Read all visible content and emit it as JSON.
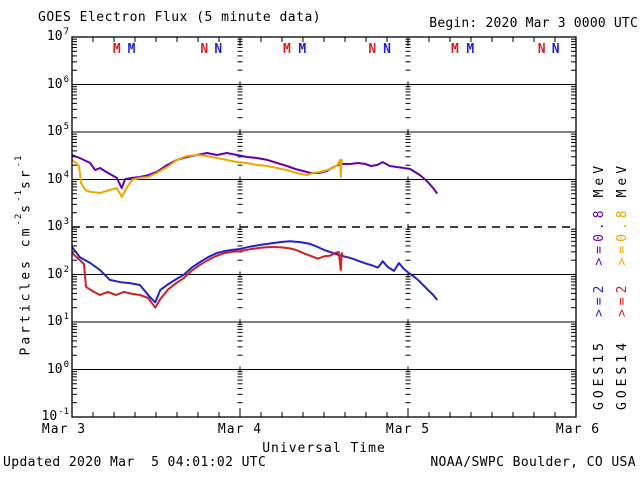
{
  "header": {
    "title": "GOES Electron Flux (5 minute data)",
    "begin": "Begin: 2020 Mar 3 0000 UTC"
  },
  "footer": {
    "updated": "Updated 2020 Mar  5 04:01:02 UTC",
    "source": "NOAA/SWPC Boulder, CO USA"
  },
  "colors": {
    "background": "#ffffff",
    "frame": "#000000",
    "goes15_08mev": "#6600AA",
    "goes14_08mev": "#EFA800",
    "goes15_2mev": "#2222CC",
    "goes14_2mev": "#CC2222"
  },
  "y_axis_title_segments": [
    {
      "text": "Particles cm",
      "sup": false
    },
    {
      "text": "-2",
      "sup": true
    },
    {
      "text": "s",
      "sup": false
    },
    {
      "text": "-1",
      "sup": true
    },
    {
      "text": "sr",
      "sup": false
    },
    {
      "text": "-1",
      "sup": true
    }
  ],
  "legend": {
    "columns": [
      {
        "id": "goes15",
        "satellite": "GOES15",
        "e2": ">=2",
        "e08": ">=0.8",
        "mev": "MeV",
        "e2_color": "#2222CC",
        "e08_color": "#6600AA",
        "text_color": "#000000"
      },
      {
        "id": "goes14",
        "satellite": "GOES14",
        "e2": ">=2",
        "e08": ">=0.8",
        "mev": "MeV",
        "e2_color": "#CC2222",
        "e08_color": "#EFA800",
        "text_color": "#000000"
      }
    ]
  },
  "chart_data": {
    "type": "line",
    "title": "GOES Electron Flux (5 minute data)",
    "xlabel": "Universal Time",
    "ylabel": "Particles cm-2 s-1 sr-1",
    "x_start": "2020 Mar 3 0000 UTC",
    "x_range_hours": [
      0,
      72
    ],
    "x_ticks": [
      {
        "label": "Mar 3",
        "hour": 0,
        "dx": -8
      },
      {
        "label": "Mar 4",
        "hour": 24,
        "dx": 0
      },
      {
        "label": "Mar 5",
        "hour": 48,
        "dx": 0
      },
      {
        "label": "Mar 6",
        "hour": 72,
        "dx": 2
      }
    ],
    "x_minor_tick_hours": 3,
    "day_line_hours": [
      24,
      48
    ],
    "y_scale": "log",
    "y_range": [
      0.1,
      10000000
    ],
    "y_tick_exponents": [
      7,
      6,
      5,
      4,
      3,
      2,
      1,
      0,
      -1
    ],
    "threshold": {
      "value": 1000,
      "style": "dashed"
    },
    "grid": true,
    "legend_position": "right",
    "satellite_markers": [
      {
        "label": "M",
        "color": "#CC2222",
        "hour": 6.4
      },
      {
        "label": "M",
        "color": "#2222CC",
        "hour": 8.5
      },
      {
        "label": "N",
        "color": "#CC2222",
        "hour": 18.9
      },
      {
        "label": "N",
        "color": "#2222CC",
        "hour": 20.9
      },
      {
        "label": "M",
        "color": "#CC2222",
        "hour": 30.7
      },
      {
        "label": "M",
        "color": "#2222CC",
        "hour": 32.9
      },
      {
        "label": "N",
        "color": "#CC2222",
        "hour": 42.9
      },
      {
        "label": "N",
        "color": "#2222CC",
        "hour": 45.0
      },
      {
        "label": "M",
        "color": "#CC2222",
        "hour": 54.7
      },
      {
        "label": "M",
        "color": "#2222CC",
        "hour": 56.9
      },
      {
        "label": "N",
        "color": "#CC2222",
        "hour": 67.1
      },
      {
        "label": "N",
        "color": "#2222CC",
        "hour": 69.1
      }
    ],
    "series": [
      {
        "id": "goes15-ge0p8mev",
        "name": "GOES15 >=0.8 MeV",
        "color": "#6600AA",
        "units": "hours_after_start, particles cm-2 s-1 sr-1",
        "points": [
          [
            0,
            32800
          ],
          [
            1.1,
            28400
          ],
          [
            2.6,
            22200
          ],
          [
            3.3,
            15800
          ],
          [
            4,
            17500
          ],
          [
            4.9,
            14400
          ],
          [
            5.7,
            12400
          ],
          [
            6.4,
            10800
          ],
          [
            7.1,
            6600
          ],
          [
            7.6,
            10200
          ],
          [
            8.6,
            10800
          ],
          [
            9.7,
            11300
          ],
          [
            10.9,
            12400
          ],
          [
            12.1,
            14400
          ],
          [
            13.6,
            20200
          ],
          [
            15,
            25800
          ],
          [
            16.4,
            29800
          ],
          [
            17.9,
            32800
          ],
          [
            19.3,
            36100
          ],
          [
            20.7,
            32800
          ],
          [
            22.1,
            36100
          ],
          [
            23.6,
            32800
          ],
          [
            25,
            29800
          ],
          [
            26.4,
            28400
          ],
          [
            27.9,
            25800
          ],
          [
            29.3,
            22200
          ],
          [
            30.7,
            19200
          ],
          [
            31.9,
            16600
          ],
          [
            33,
            15100
          ],
          [
            34.1,
            13700
          ],
          [
            35.3,
            13700
          ],
          [
            36.4,
            15100
          ],
          [
            37.4,
            18300
          ],
          [
            38.4,
            21200
          ],
          [
            39.7,
            21200
          ],
          [
            40.9,
            22200
          ],
          [
            41.9,
            21200
          ],
          [
            42.7,
            19200
          ],
          [
            43.6,
            20200
          ],
          [
            44.4,
            23300
          ],
          [
            45.4,
            19200
          ],
          [
            46.4,
            18300
          ],
          [
            47.4,
            17500
          ],
          [
            48.3,
            16600
          ],
          [
            49,
            14400
          ],
          [
            49.7,
            12400
          ],
          [
            50.4,
            10200
          ],
          [
            51.1,
            8000
          ],
          [
            51.7,
            6300
          ],
          [
            52.1,
            5200
          ]
        ]
      },
      {
        "id": "goes14-ge0p8mev",
        "name": "GOES14 >=0.8 MeV",
        "color": "#EFA800",
        "units": "hours_after_start, particles cm-2 s-1 sr-1",
        "points": [
          [
            0,
            25800
          ],
          [
            0.6,
            22200
          ],
          [
            1,
            19200
          ],
          [
            1.3,
            8400
          ],
          [
            1.9,
            6000
          ],
          [
            2.6,
            5500
          ],
          [
            4,
            5200
          ],
          [
            5.4,
            6000
          ],
          [
            6.4,
            6600
          ],
          [
            7.1,
            4300
          ],
          [
            7.9,
            7000
          ],
          [
            8.6,
            9800
          ],
          [
            9.7,
            10800
          ],
          [
            10.9,
            11300
          ],
          [
            12.1,
            13700
          ],
          [
            13.6,
            18300
          ],
          [
            15,
            25800
          ],
          [
            16.4,
            31300
          ],
          [
            17.9,
            32800
          ],
          [
            19.3,
            31300
          ],
          [
            20.7,
            28400
          ],
          [
            22.1,
            25800
          ],
          [
            23.6,
            23300
          ],
          [
            25,
            22200
          ],
          [
            26.4,
            20200
          ],
          [
            27.9,
            19200
          ],
          [
            29.3,
            17500
          ],
          [
            30.7,
            15800
          ],
          [
            32.1,
            13700
          ],
          [
            33.6,
            12400
          ],
          [
            34.4,
            13700
          ],
          [
            35.4,
            14400
          ],
          [
            36.4,
            15800
          ],
          [
            37.3,
            17500
          ],
          [
            37.9,
            20200
          ],
          [
            38.3,
            25800
          ],
          [
            38.4,
            11300
          ],
          [
            38.5,
            25800
          ],
          [
            38.6,
            24500
          ]
        ]
      },
      {
        "id": "goes15-ge2mev",
        "name": "GOES15 >=2 MeV",
        "color": "#2222CC",
        "units": "hours_after_start, particles cm-2 s-1 sr-1",
        "points": [
          [
            0,
            379
          ],
          [
            1.1,
            233
          ],
          [
            2.6,
            175
          ],
          [
            4,
            124
          ],
          [
            5.4,
            77
          ],
          [
            6.9,
            69
          ],
          [
            8.3,
            66
          ],
          [
            9.7,
            60
          ],
          [
            11.1,
            34
          ],
          [
            11.9,
            26
          ],
          [
            12.6,
            47
          ],
          [
            13.7,
            62
          ],
          [
            14.9,
            80
          ],
          [
            16,
            100
          ],
          [
            17.1,
            140
          ],
          [
            18.3,
            183
          ],
          [
            19.4,
            230
          ],
          [
            20.6,
            280
          ],
          [
            21.7,
            310
          ],
          [
            22.9,
            330
          ],
          [
            24,
            345
          ],
          [
            25.4,
            385
          ],
          [
            26.9,
            420
          ],
          [
            28.3,
            450
          ],
          [
            29.7,
            480
          ],
          [
            31.1,
            500
          ],
          [
            32.6,
            480
          ],
          [
            34,
            440
          ],
          [
            35.1,
            380
          ],
          [
            36,
            330
          ],
          [
            36.9,
            298
          ],
          [
            37.7,
            269
          ],
          [
            38.6,
            245
          ],
          [
            39.4,
            230
          ],
          [
            40.3,
            210
          ],
          [
            41.1,
            190
          ],
          [
            42,
            170
          ],
          [
            42.9,
            155
          ],
          [
            43.7,
            140
          ],
          [
            44.4,
            190
          ],
          [
            45.1,
            144
          ],
          [
            46,
            119
          ],
          [
            46.7,
            175
          ],
          [
            47.4,
            131
          ],
          [
            48.1,
            108
          ],
          [
            48.9,
            89
          ],
          [
            49.6,
            73
          ],
          [
            50.3,
            57
          ],
          [
            51,
            45
          ],
          [
            51.6,
            37
          ],
          [
            52.1,
            30
          ]
        ]
      },
      {
        "id": "goes14-ge2mev",
        "name": "GOES14 >=2 MeV",
        "color": "#CC2222",
        "units": "hours_after_start, particles cm-2 s-1 sr-1",
        "points": [
          [
            0,
            284
          ],
          [
            1.1,
            202
          ],
          [
            1.7,
            166
          ],
          [
            2,
            55
          ],
          [
            2.9,
            45
          ],
          [
            4,
            37
          ],
          [
            5.1,
            43
          ],
          [
            6.3,
            37
          ],
          [
            7.4,
            43
          ],
          [
            8.6,
            39
          ],
          [
            9.7,
            37
          ],
          [
            10.9,
            32
          ],
          [
            11.9,
            20
          ],
          [
            12.6,
            30
          ],
          [
            13.7,
            48
          ],
          [
            14.9,
            66
          ],
          [
            16,
            85
          ],
          [
            17.1,
            120
          ],
          [
            18.3,
            160
          ],
          [
            19.4,
            200
          ],
          [
            20.6,
            245
          ],
          [
            21.7,
            280
          ],
          [
            22.9,
            300
          ],
          [
            24,
            310
          ],
          [
            25.4,
            340
          ],
          [
            26.9,
            365
          ],
          [
            28.3,
            380
          ],
          [
            29.7,
            375
          ],
          [
            30.9,
            360
          ],
          [
            32,
            330
          ],
          [
            33.1,
            280
          ],
          [
            34.3,
            240
          ],
          [
            35.1,
            215
          ],
          [
            36,
            240
          ],
          [
            36.9,
            250
          ],
          [
            37.6,
            284
          ],
          [
            38.1,
            298
          ],
          [
            38.4,
            124
          ],
          [
            38.55,
            284
          ],
          [
            38.7,
            245
          ]
        ]
      }
    ]
  }
}
